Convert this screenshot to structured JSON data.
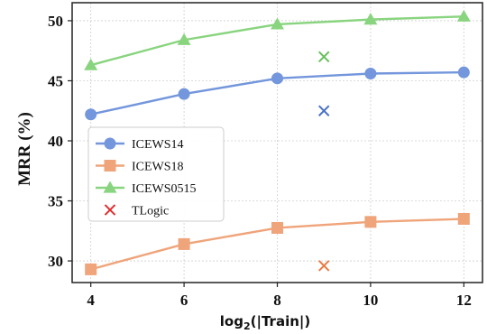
{
  "chart_data": {
    "type": "line",
    "xlabel": "log2(|Train|)",
    "xlabel_main": "log",
    "xlabel_sub": "2",
    "xlabel_rest": "(|Train|)",
    "ylabel": "MRR (%)",
    "x": [
      4,
      6,
      8,
      10,
      12
    ],
    "xlim": [
      3.6,
      12.4
    ],
    "ylim": [
      28.2,
      51.5
    ],
    "xticks": [
      "4",
      "6",
      "8",
      "10",
      "12"
    ],
    "yticks": [
      "30",
      "35",
      "40",
      "45",
      "50"
    ],
    "grid": true,
    "legend_position": "center-left",
    "series": [
      {
        "name": "ICEWS14",
        "marker": "circle",
        "color": "#7396dc",
        "values": [
          42.2,
          43.9,
          45.2,
          45.6,
          45.7
        ]
      },
      {
        "name": "ICEWS18",
        "marker": "square",
        "color": "#efa47a",
        "values": [
          29.3,
          31.4,
          32.75,
          33.25,
          33.5
        ]
      },
      {
        "name": "ICEWS0515",
        "marker": "triangle",
        "color": "#89d47f",
        "values": [
          46.3,
          48.4,
          49.7,
          50.1,
          50.35
        ]
      }
    ],
    "tlogic": {
      "name": "TLogic",
      "legend_color": "#e03030",
      "points": [
        {
          "x": 9,
          "y": 47.0,
          "color": "#68c05c"
        },
        {
          "x": 9,
          "y": 42.5,
          "color": "#4a72c4"
        },
        {
          "x": 9,
          "y": 29.6,
          "color": "#ea7a45"
        }
      ]
    }
  }
}
